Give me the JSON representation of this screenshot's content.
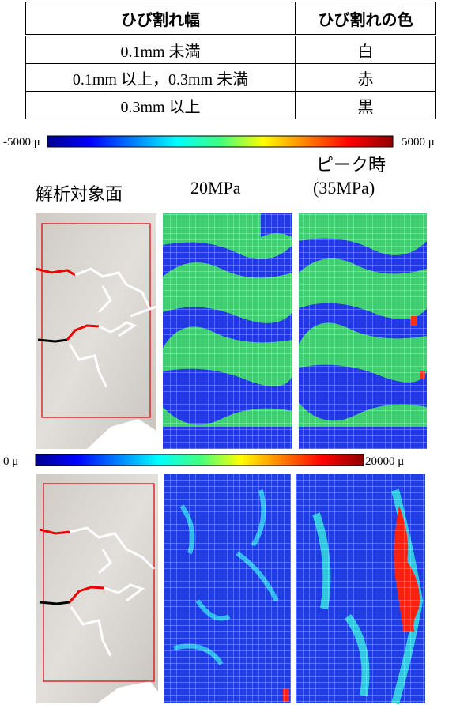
{
  "table": {
    "headers": [
      "ひび割れ幅",
      "ひび割れの色"
    ],
    "rows": [
      [
        "0.1mm 未満",
        "白"
      ],
      [
        "0.1mm 以上，0.3mm 未満",
        "赤"
      ],
      [
        "0.3mm 以上",
        "黒"
      ]
    ]
  },
  "colorbars": [
    {
      "min_label": "-5000 μ",
      "max_label": "5000 μ"
    },
    {
      "min_label": "0 μ",
      "max_label": "20000 μ"
    }
  ],
  "column_headers": {
    "surface": "解析対象面",
    "stage1": "20MPa",
    "peak_line1": "ピーク時",
    "peak_line2": "(35MPa)"
  }
}
